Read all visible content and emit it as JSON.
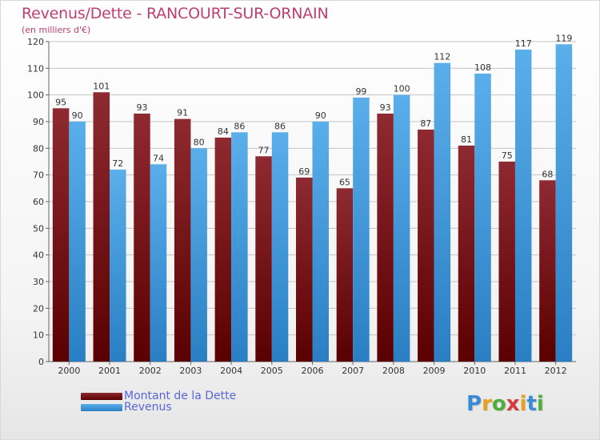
{
  "chart_data": {
    "type": "bar",
    "title": "Revenus/Dette - RANCOURT-SUR-ORNAIN",
    "subtitle": "(en milliers d'€)",
    "xlabel": "",
    "ylabel": "",
    "ylim": [
      0,
      120
    ],
    "yticks": [
      0,
      10,
      20,
      30,
      40,
      50,
      60,
      70,
      80,
      90,
      100,
      110,
      120
    ],
    "grid": true,
    "legend_position": "bottom-left",
    "categories": [
      "2000",
      "2001",
      "2002",
      "2003",
      "2004",
      "2005",
      "2006",
      "2007",
      "2008",
      "2009",
      "2010",
      "2011",
      "2012"
    ],
    "series": [
      {
        "name": "Montant de la Dette",
        "color": "#7a1a1f",
        "values": [
          95,
          101,
          93,
          91,
          84,
          77,
          69,
          65,
          93,
          87,
          81,
          75,
          68
        ]
      },
      {
        "name": "Revenus",
        "color": "#4aa3e3",
        "values": [
          90,
          72,
          74,
          80,
          86,
          86,
          90,
          99,
          100,
          112,
          108,
          117,
          119
        ]
      }
    ]
  },
  "logo": {
    "letters": [
      "P",
      "r",
      "o",
      "x",
      "i",
      "t",
      "i"
    ],
    "colors": [
      "#3a8ad6",
      "#e8a020",
      "#4fae3a",
      "#d23c3c",
      "#e8a020",
      "#3a8ad6",
      "#4fae3a"
    ]
  }
}
